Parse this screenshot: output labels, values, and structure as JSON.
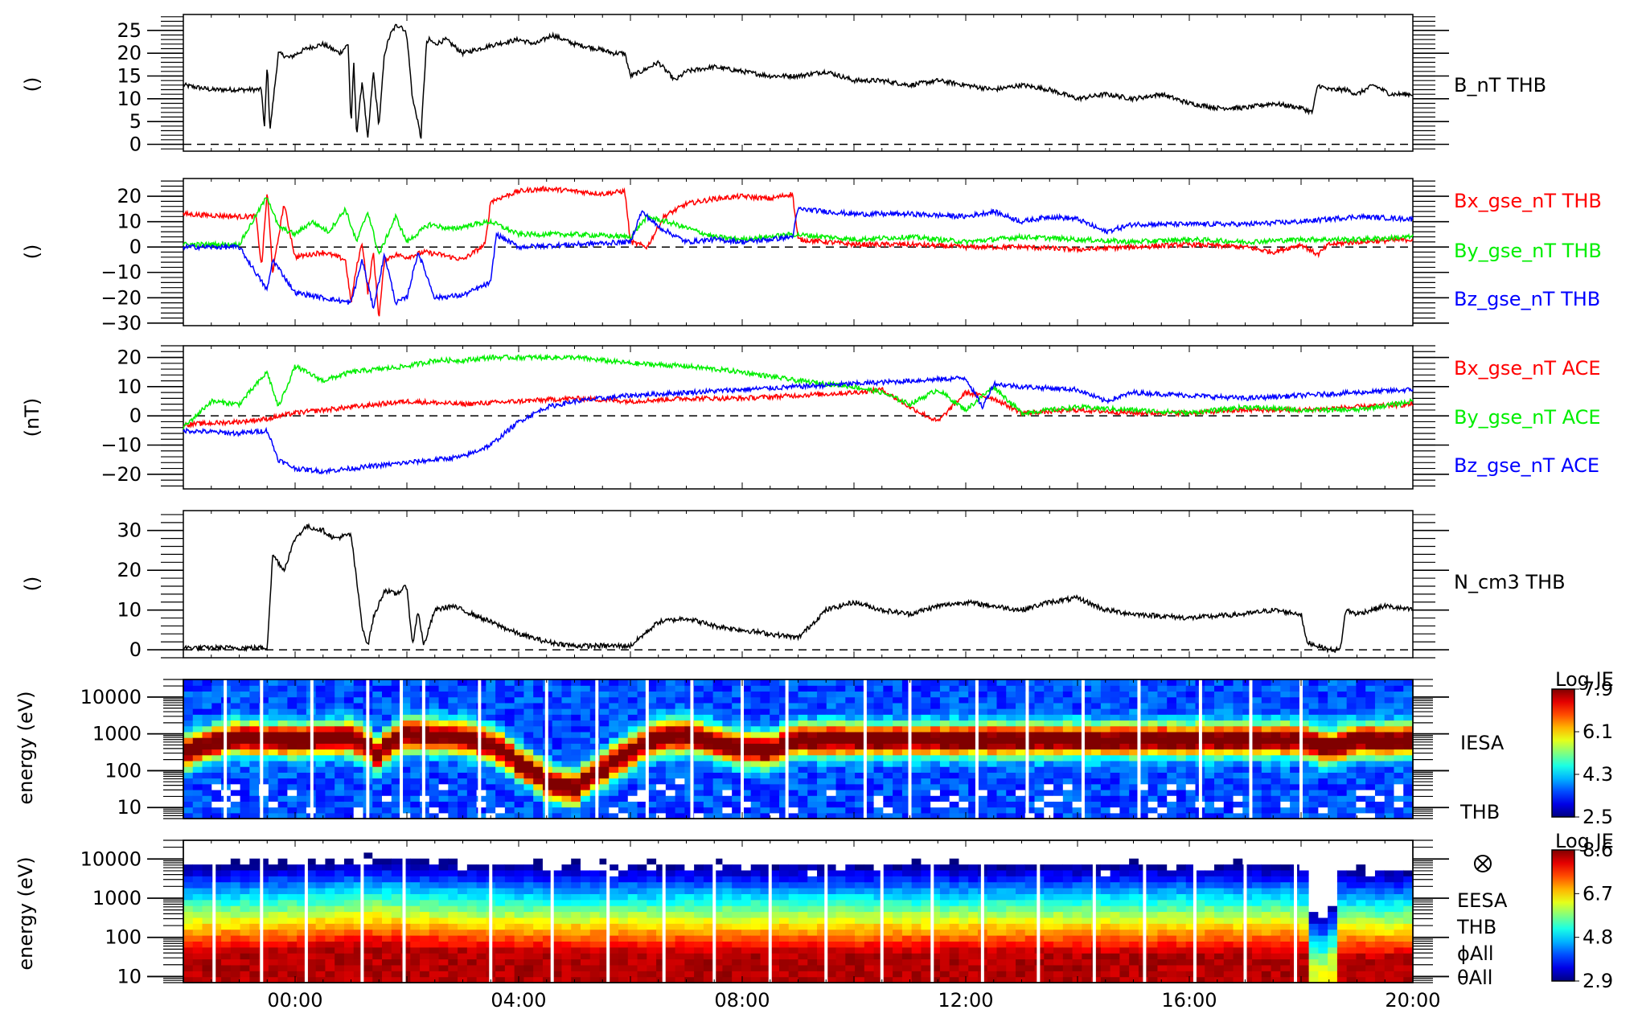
{
  "time_axis": {
    "range_hours": [
      -2.0,
      20.0
    ],
    "ticks": [
      {
        "hour": 0,
        "label": "00:00"
      },
      {
        "hour": 4,
        "label": "04:00"
      },
      {
        "hour": 8,
        "label": "08:00"
      },
      {
        "hour": 12,
        "label": "12:00"
      },
      {
        "hour": 16,
        "label": "16:00"
      },
      {
        "hour": 20,
        "label": "20:00"
      }
    ]
  },
  "chart_data": [
    {
      "type": "line",
      "id": "thb-bmag",
      "ylabel": "()",
      "ylim": [
        -1.5,
        28.5
      ],
      "yticks": [
        0,
        5,
        10,
        15,
        20,
        25
      ],
      "zero_line": true,
      "series": [
        {
          "name": "B_nT THB",
          "color": "#000000",
          "x": [
            -2.0,
            -1.5,
            -1.0,
            -0.7,
            -0.6,
            -0.55,
            -0.5,
            -0.45,
            -0.3,
            -0.1,
            0.2,
            0.5,
            0.8,
            0.95,
            1.0,
            1.05,
            1.1,
            1.2,
            1.3,
            1.4,
            1.5,
            1.6,
            1.7,
            1.8,
            1.9,
            2.0,
            2.1,
            2.2,
            2.25,
            2.3,
            2.35,
            2.4,
            2.5,
            2.7,
            3.0,
            3.3,
            3.6,
            4.0,
            4.3,
            4.6,
            5.0,
            5.4,
            5.7,
            5.9,
            6.0,
            6.2,
            6.5,
            6.8,
            7.0,
            7.5,
            8.0,
            8.5,
            9.0,
            9.5,
            10.0,
            10.5,
            11.0,
            11.5,
            12.0,
            12.5,
            13.0,
            13.5,
            14.0,
            14.5,
            15.0,
            15.5,
            16.0,
            16.5,
            17.0,
            17.5,
            18.0,
            18.2,
            18.3,
            18.5,
            18.8,
            19.0,
            19.3,
            19.6,
            20.0
          ],
          "y": [
            13,
            12,
            12,
            12,
            12,
            3,
            18,
            3,
            20,
            19,
            21,
            22,
            20,
            22,
            4,
            18,
            2,
            14,
            1,
            16,
            4,
            20,
            24,
            26,
            26,
            24,
            10,
            5,
            1,
            12,
            22,
            23,
            22,
            23,
            20,
            21,
            22,
            23,
            22,
            24,
            22,
            21,
            20,
            20,
            15,
            16,
            18,
            14,
            16,
            17,
            16,
            15,
            15,
            16,
            14,
            14,
            13,
            14,
            13,
            12,
            13,
            12,
            10,
            11,
            10,
            11,
            9,
            8,
            8,
            9,
            8,
            7,
            13,
            12,
            12,
            11,
            13,
            11,
            11
          ]
        }
      ]
    },
    {
      "type": "line",
      "id": "thb-bgse",
      "ylabel": "()",
      "ylim": [
        -31,
        27
      ],
      "yticks": [
        -30,
        -20,
        -10,
        0,
        10,
        20
      ],
      "zero_line": true,
      "series": [
        {
          "name": "Bx_gse_nT THB",
          "color": "#ff0000",
          "x": [
            -2.0,
            -1.0,
            -0.7,
            -0.6,
            -0.5,
            -0.4,
            -0.2,
            0.0,
            0.5,
            0.9,
            1.0,
            1.1,
            1.2,
            1.3,
            1.4,
            1.5,
            1.6,
            1.8,
            2.0,
            2.3,
            2.6,
            3.0,
            3.4,
            3.5,
            4.0,
            4.5,
            5.0,
            5.5,
            5.9,
            6.0,
            6.3,
            6.6,
            7.0,
            7.5,
            8.0,
            8.5,
            8.9,
            9.0,
            9.5,
            10.0,
            11.0,
            12.0,
            13.0,
            14.0,
            15.0,
            16.0,
            17.0,
            17.5,
            18.0,
            18.3,
            18.5,
            19.0,
            20.0
          ],
          "y": [
            13,
            12,
            12,
            -8,
            22,
            -10,
            17,
            -4,
            -2,
            -5,
            -22,
            -8,
            2,
            -18,
            -2,
            -28,
            -5,
            -3,
            -4,
            -2,
            -3,
            -5,
            1,
            18,
            22,
            23,
            22,
            21,
            22,
            2,
            0,
            12,
            17,
            19,
            20,
            19,
            21,
            3,
            2,
            1,
            1,
            0,
            0,
            -1,
            0,
            1,
            0,
            -2,
            1,
            -3,
            1,
            2,
            3
          ]
        },
        {
          "name": "By_gse_nT THB",
          "color": "#00ee00",
          "x": [
            -2.0,
            -1.0,
            -0.5,
            -0.3,
            0.0,
            0.3,
            0.6,
            0.9,
            1.1,
            1.3,
            1.5,
            1.8,
            2.0,
            2.4,
            2.8,
            3.2,
            3.5,
            4.0,
            5.0,
            6.0,
            6.3,
            6.8,
            7.5,
            8.0,
            8.9,
            9.5,
            10.0,
            11.0,
            12.0,
            13.0,
            14.0,
            15.0,
            16.0,
            17.0,
            18.0,
            19.0,
            20.0
          ],
          "y": [
            1,
            1,
            20,
            8,
            5,
            10,
            6,
            15,
            2,
            14,
            -3,
            12,
            2,
            9,
            7,
            9,
            10,
            5,
            5,
            4,
            12,
            9,
            4,
            3,
            5,
            4,
            3,
            4,
            2,
            4,
            3,
            2,
            3,
            2,
            3,
            3,
            4
          ]
        },
        {
          "name": "Bz_gse_nT THB",
          "color": "#0000ff",
          "x": [
            -2.0,
            -1.0,
            -0.5,
            -0.4,
            0.0,
            0.5,
            1.0,
            1.2,
            1.4,
            1.6,
            1.8,
            2.0,
            2.2,
            2.5,
            3.0,
            3.5,
            3.6,
            4.0,
            5.0,
            6.0,
            6.2,
            6.5,
            7.0,
            7.5,
            8.0,
            8.5,
            8.9,
            9.0,
            10.0,
            11.0,
            12.0,
            12.5,
            13.0,
            13.5,
            14.0,
            14.5,
            15.0,
            16.0,
            17.0,
            18.0,
            19.0,
            20.0
          ],
          "y": [
            0,
            0,
            -17,
            -5,
            -18,
            -20,
            -22,
            -5,
            -24,
            -3,
            -22,
            -20,
            -2,
            -20,
            -19,
            -14,
            5,
            0,
            1,
            2,
            14,
            8,
            2,
            3,
            2,
            3,
            4,
            15,
            13,
            13,
            12,
            14,
            10,
            12,
            11,
            6,
            9,
            9,
            9,
            10,
            12,
            11
          ]
        }
      ]
    },
    {
      "type": "line",
      "id": "ace-bgse",
      "ylabel": "(nT)",
      "ylim": [
        -25,
        24
      ],
      "yticks": [
        -20,
        -10,
        0,
        10,
        20
      ],
      "zero_line": true,
      "series": [
        {
          "name": "Bx_gse_nT ACE",
          "color": "#ff0000",
          "x": [
            -2.0,
            -1.0,
            -0.5,
            0.0,
            0.5,
            1.0,
            1.5,
            2.0,
            3.0,
            4.0,
            5.0,
            6.0,
            7.0,
            8.0,
            9.0,
            10.0,
            10.5,
            11.0,
            11.5,
            12.0,
            12.5,
            13.0,
            14.0,
            15.0,
            16.0,
            17.0,
            18.0,
            19.0,
            20.0
          ],
          "y": [
            -3,
            -2,
            -1,
            1,
            2,
            3,
            4,
            5,
            4,
            5,
            6,
            5,
            6,
            6,
            7,
            8,
            9,
            3,
            -2,
            8,
            6,
            1,
            2,
            1,
            1,
            2,
            2,
            3,
            4
          ]
        },
        {
          "name": "By_gse_nT ACE",
          "color": "#00ee00",
          "x": [
            -2.0,
            -1.5,
            -1.0,
            -0.5,
            -0.3,
            0.0,
            0.5,
            1.0,
            1.5,
            2.0,
            2.5,
            3.0,
            3.5,
            4.0,
            5.0,
            6.0,
            7.0,
            8.0,
            9.0,
            10.0,
            10.5,
            11.0,
            11.5,
            12.0,
            12.5,
            13.0,
            14.0,
            15.0,
            16.0,
            17.0,
            18.0,
            19.0,
            20.0
          ],
          "y": [
            -4,
            5,
            4,
            15,
            3,
            17,
            12,
            15,
            16,
            17,
            19,
            19,
            20,
            20,
            20,
            18,
            17,
            15,
            12,
            10,
            8,
            4,
            9,
            2,
            10,
            1,
            3,
            2,
            1,
            3,
            2,
            2,
            5
          ]
        },
        {
          "name": "Bz_gse_nT ACE",
          "color": "#0000ff",
          "x": [
            -2.0,
            -1.0,
            -0.5,
            -0.3,
            0.0,
            0.5,
            1.0,
            1.5,
            2.0,
            2.5,
            3.0,
            3.5,
            4.0,
            4.5,
            5.0,
            5.5,
            6.0,
            7.0,
            8.0,
            9.0,
            10.0,
            11.0,
            12.0,
            12.3,
            12.5,
            13.0,
            14.0,
            14.5,
            15.0,
            16.0,
            17.0,
            18.0,
            19.0,
            20.0
          ],
          "y": [
            -5,
            -6,
            -5,
            -15,
            -18,
            -19,
            -18,
            -17,
            -16,
            -15,
            -14,
            -10,
            -2,
            3,
            5,
            6,
            7,
            8,
            9,
            10,
            11,
            12,
            13,
            3,
            11,
            10,
            9,
            5,
            8,
            7,
            6,
            7,
            8,
            9
          ]
        }
      ]
    },
    {
      "type": "line",
      "id": "thb-density",
      "ylabel": "()",
      "ylim": [
        -2,
        35
      ],
      "yticks": [
        0,
        10,
        20,
        30
      ],
      "zero_line": true,
      "series": [
        {
          "name": "N_cm3 THB",
          "color": "#000000",
          "x": [
            -2.0,
            -1.0,
            -0.5,
            -0.4,
            -0.2,
            0.0,
            0.2,
            0.5,
            0.7,
            1.0,
            1.2,
            1.3,
            1.4,
            1.6,
            1.8,
            2.0,
            2.1,
            2.2,
            2.3,
            2.5,
            2.8,
            3.0,
            3.5,
            4.0,
            4.5,
            5.0,
            5.5,
            6.0,
            6.5,
            7.0,
            7.5,
            8.0,
            8.5,
            9.0,
            9.5,
            10.0,
            10.5,
            11.0,
            11.5,
            12.0,
            12.5,
            13.0,
            13.5,
            14.0,
            14.5,
            15.0,
            16.0,
            17.0,
            17.5,
            18.0,
            18.1,
            18.5,
            18.7,
            18.8,
            19.0,
            19.5,
            20.0
          ],
          "y": [
            0.5,
            0.5,
            0.5,
            24,
            20,
            28,
            31,
            30,
            28,
            29,
            6,
            1,
            8,
            15,
            14,
            16,
            1,
            10,
            1,
            10,
            11,
            10,
            7,
            4,
            2,
            1,
            1,
            1,
            7,
            8,
            6,
            5,
            4,
            3,
            10,
            12,
            10,
            9,
            11,
            12,
            11,
            10,
            12,
            13,
            10,
            9,
            8,
            9,
            10,
            9,
            2,
            0,
            0,
            10,
            9,
            11,
            10
          ]
        }
      ]
    },
    {
      "type": "heatmap",
      "id": "iesa",
      "ylabel": "energy (eV)",
      "yscale": "log",
      "ylim": [
        5,
        30000
      ],
      "yticks": [
        10,
        100,
        1000,
        10000
      ],
      "instrument_label": "IESA",
      "probe_label": "THB",
      "colorbar": {
        "title": "Log JE",
        "ticks": [
          "7.9",
          "6.1",
          "4.3",
          "2.5"
        ],
        "range": [
          2.5,
          7.9
        ]
      },
      "peak_energy_eV": {
        "x": [
          -2.0,
          -1.0,
          -0.5,
          0.0,
          1.0,
          1.5,
          2.0,
          3.0,
          3.5,
          4.0,
          4.5,
          5.0,
          5.5,
          6.0,
          6.5,
          7.0,
          7.5,
          8.0,
          8.5,
          9.0,
          12.0,
          16.0,
          18.0,
          18.5,
          19.0,
          20.0
        ],
        "y": [
          300,
          800,
          700,
          700,
          800,
          250,
          1000,
          800,
          500,
          150,
          50,
          30,
          100,
          300,
          800,
          900,
          600,
          400,
          350,
          700,
          700,
          700,
          700,
          400,
          700,
          700
        ]
      }
    },
    {
      "type": "heatmap",
      "id": "eesa",
      "ylabel": "energy (eV)",
      "yscale": "log",
      "ylim": [
        7,
        30000
      ],
      "yticks": [
        10,
        100,
        1000,
        10000
      ],
      "instrument_label": "EESA",
      "probe_label": "THB",
      "extra_labels": [
        "ϕAll",
        "θAll"
      ],
      "colorbar": {
        "title": "Log JE",
        "ticks": [
          "8.6",
          "6.7",
          "4.8",
          "2.9"
        ],
        "range": [
          2.9,
          8.6
        ]
      },
      "core_energy_eV": {
        "x": [
          -2.0,
          0.0,
          1.5,
          2.0,
          4.0,
          8.0,
          12.0,
          16.0,
          18.0,
          18.3,
          18.6,
          20.0
        ],
        "y": [
          40,
          45,
          60,
          50,
          40,
          40,
          40,
          40,
          40,
          10,
          30,
          30
        ]
      }
    }
  ]
}
